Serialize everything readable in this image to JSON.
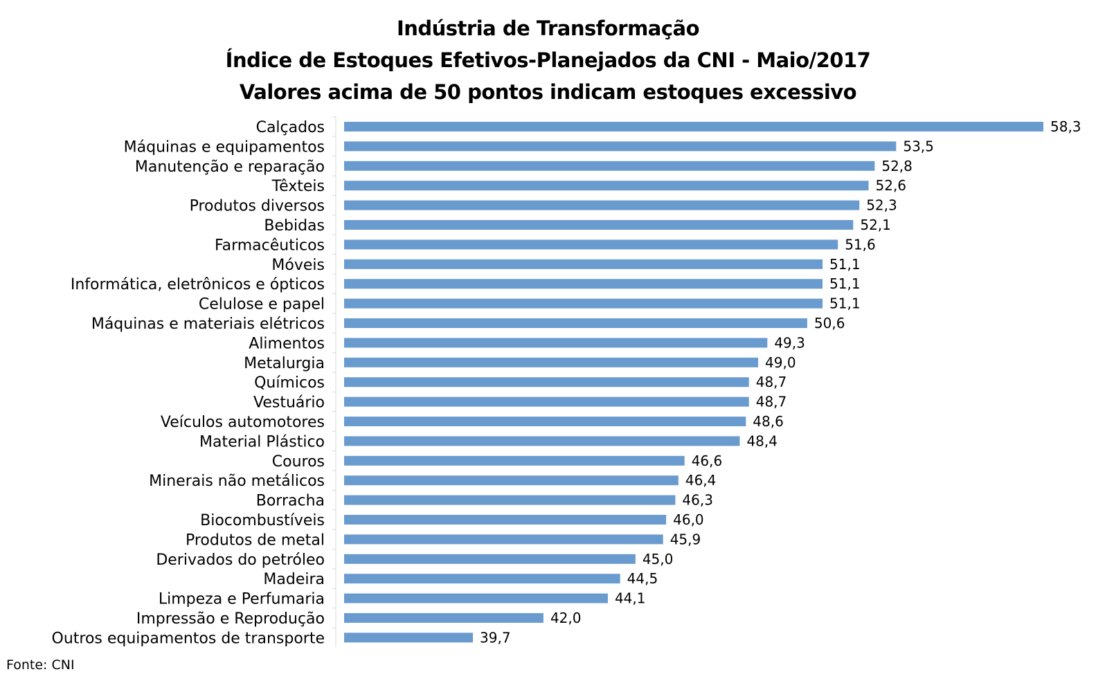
{
  "chart_data": {
    "type": "bar",
    "orientation": "horizontal",
    "title": "Indústria de Transformação",
    "subtitle": "Índice de Estoques Efetivos-Planejados da CNI - Maio/2017",
    "subtitle2": "Valores acima de 50 pontos indicam estoques excessivo",
    "xlabel": "",
    "ylabel": "",
    "xlim": [
      35.5,
      58.3
    ],
    "grid": false,
    "legend": "none",
    "bar_color": "#6a9bcf",
    "categories": [
      "Calçados",
      "Máquinas e equipamentos",
      "Manutenção e reparação",
      "Têxteis",
      "Produtos diversos",
      "Bebidas",
      "Farmacêuticos",
      "Móveis",
      "Informática, eletrônicos e ópticos",
      "Celulose e papel",
      "Máquinas e materiais elétricos",
      "Alimentos",
      "Metalurgia",
      "Químicos",
      "Vestuário",
      "Veículos automotores",
      "Material Plástico",
      "Couros",
      "Minerais não metálicos",
      "Borracha",
      "Biocombustíveis",
      "Produtos de metal",
      "Derivados do petróleo",
      "Madeira",
      "Limpeza e Perfumaria",
      "Impressão e Reprodução",
      "Outros equipamentos de transporte"
    ],
    "values": [
      58.3,
      53.5,
      52.8,
      52.6,
      52.3,
      52.1,
      51.6,
      51.1,
      51.1,
      51.1,
      50.6,
      49.3,
      49.0,
      48.7,
      48.7,
      48.6,
      48.4,
      46.6,
      46.4,
      46.3,
      46.0,
      45.9,
      45.0,
      44.5,
      44.1,
      42.0,
      39.7
    ],
    "value_labels": [
      "58,3",
      "53,5",
      "52,8",
      "52,6",
      "52,3",
      "52,1",
      "51,6",
      "51,1",
      "51,1",
      "51,1",
      "50,6",
      "49,3",
      "49,0",
      "48,7",
      "48,7",
      "48,6",
      "48,4",
      "46,6",
      "46,4",
      "46,3",
      "46,0",
      "45,9",
      "45,0",
      "44,5",
      "44,1",
      "42,0",
      "39,7"
    ]
  },
  "source": "Fonte: CNI"
}
